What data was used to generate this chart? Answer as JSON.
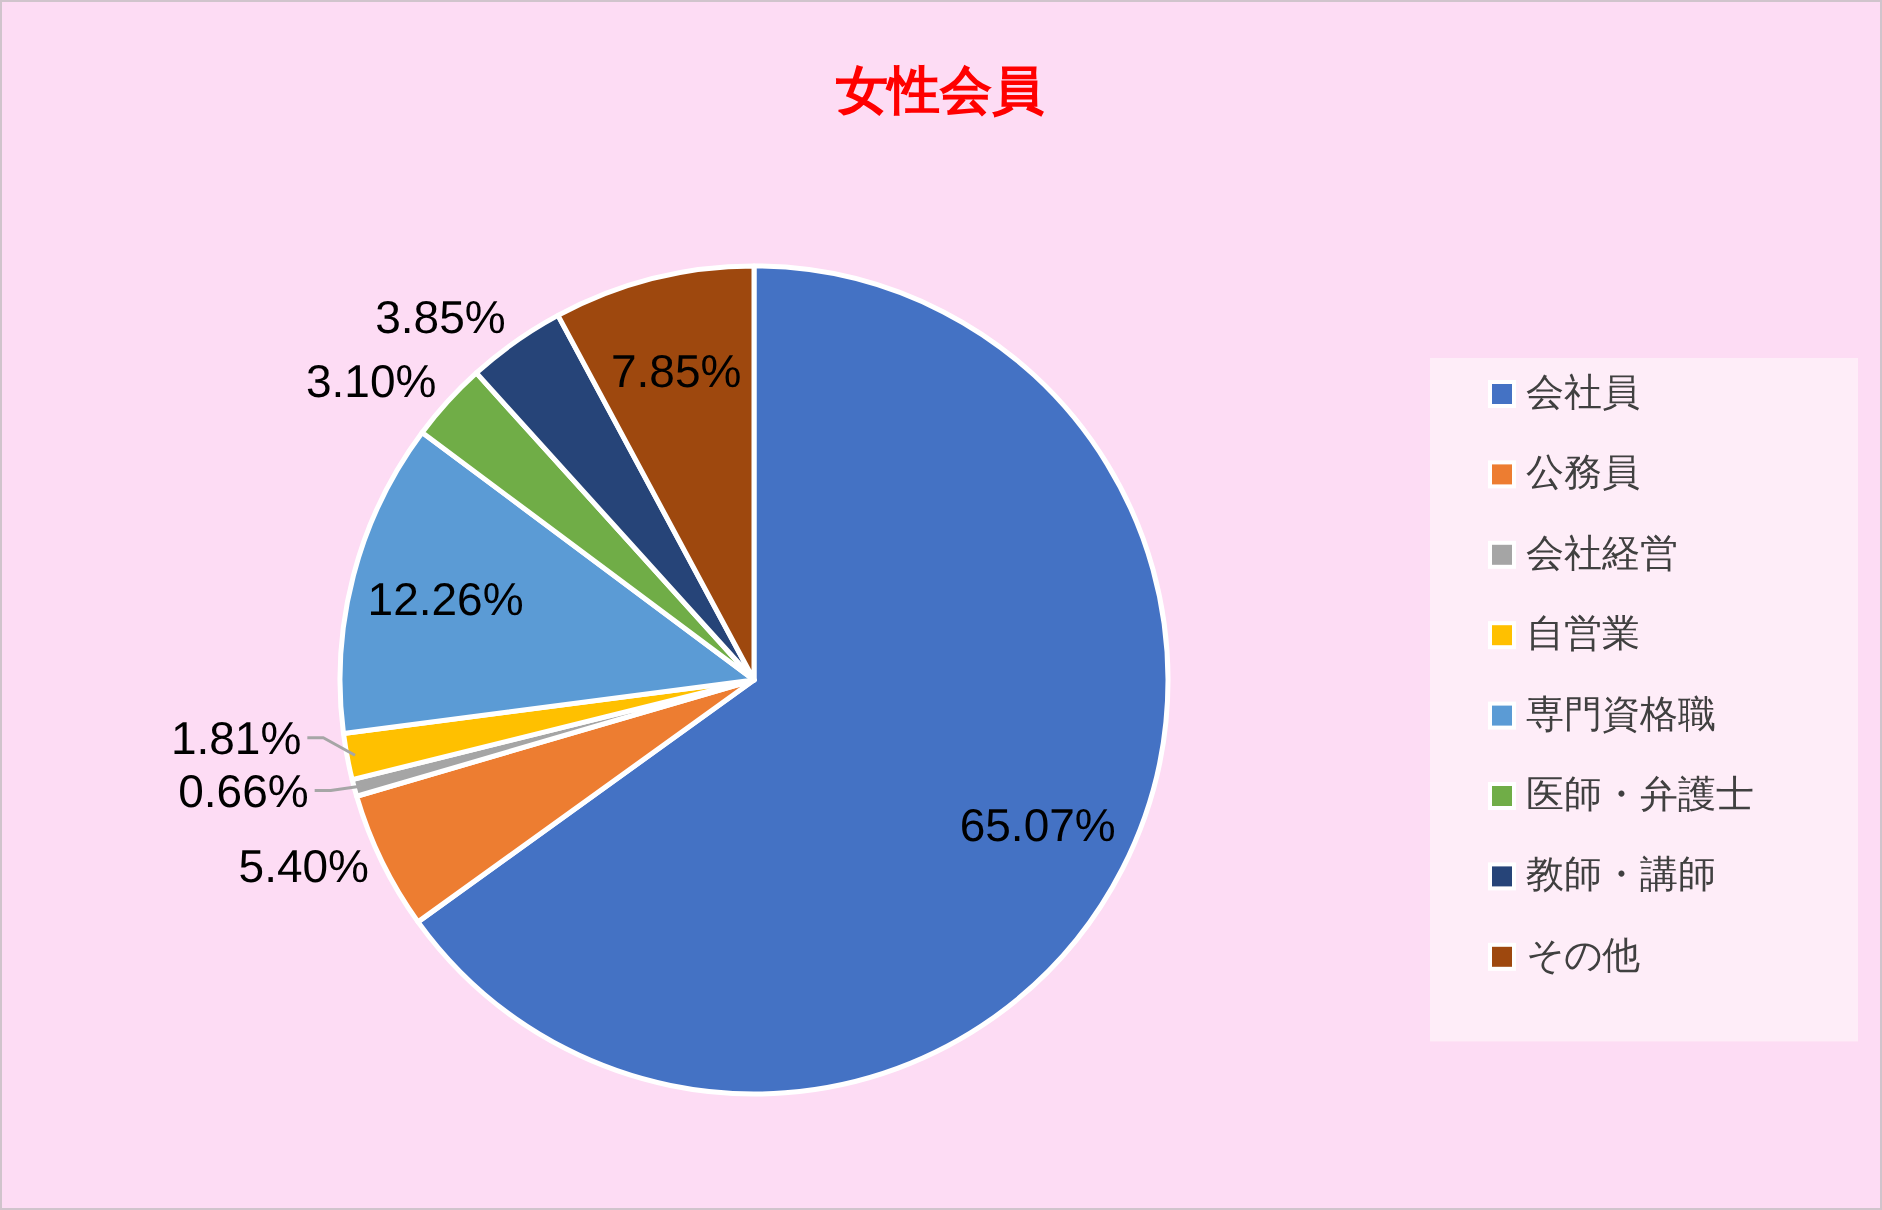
{
  "chart_data": {
    "type": "pie",
    "title": "女性会員",
    "categories": [
      "会社員",
      "公務員",
      "会社経営",
      "自営業",
      "専門資格職",
      "医師・弁護士",
      "教師・講師",
      "その他"
    ],
    "values": [
      65.07,
      5.4,
      0.66,
      1.81,
      12.26,
      3.1,
      3.85,
      7.85
    ],
    "colors": [
      "#4472c4",
      "#ed7d31",
      "#a5a5a5",
      "#ffc000",
      "#5b9bd5",
      "#70ad47",
      "#264478",
      "#9e480e"
    ],
    "value_labels": [
      "65.07%",
      "5.40%",
      "0.66%",
      "1.81%",
      "12.26%",
      "3.10%",
      "3.85%",
      "7.85%"
    ],
    "legend": "right"
  }
}
